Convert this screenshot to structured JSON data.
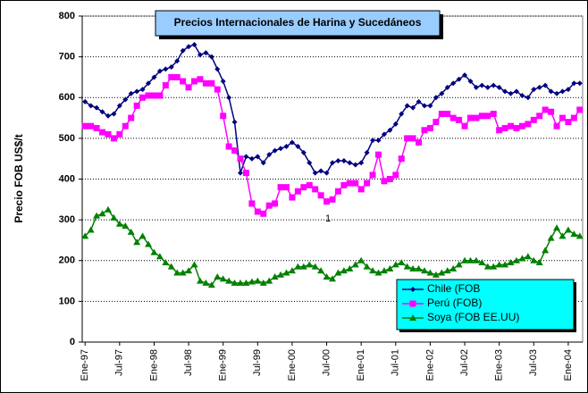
{
  "chart_data": {
    "type": "line",
    "title": "Precios Internacionales de Harina y Sucedáneos",
    "y_label": "Precio FOB US$/t",
    "annotation": "1",
    "categories": [
      "Ene-97",
      null,
      null,
      null,
      null,
      null,
      "Jul-97",
      null,
      null,
      null,
      null,
      null,
      "Ene-98",
      null,
      null,
      null,
      null,
      null,
      "Jul-98",
      null,
      null,
      null,
      null,
      null,
      "Ene-99",
      null,
      null,
      null,
      null,
      null,
      "Jul-99",
      null,
      null,
      null,
      null,
      null,
      "Ene-00",
      null,
      null,
      null,
      null,
      null,
      "Jul-00",
      null,
      null,
      null,
      null,
      null,
      "Ene-01",
      null,
      null,
      null,
      null,
      null,
      "Jul-01",
      null,
      null,
      null,
      null,
      null,
      "Ene-02",
      null,
      null,
      null,
      null,
      null,
      "Jul-02",
      null,
      null,
      null,
      null,
      null,
      "Ene-03",
      null,
      null,
      null,
      null,
      null,
      "Jul-03",
      null,
      null,
      null,
      null,
      null,
      "Ene-04",
      null,
      null
    ],
    "series": [
      {
        "name": "Chile (FOB",
        "color": "#000080",
        "marker": "diamond",
        "values": [
          590,
          580,
          575,
          565,
          555,
          560,
          580,
          595,
          610,
          615,
          620,
          635,
          650,
          665,
          670,
          675,
          690,
          715,
          725,
          730,
          705,
          710,
          700,
          670,
          640,
          600,
          540,
          415,
          455,
          450,
          455,
          440,
          460,
          470,
          475,
          480,
          490,
          480,
          465,
          440,
          415,
          420,
          415,
          440,
          445,
          445,
          440,
          435,
          440,
          465,
          495,
          495,
          510,
          520,
          535,
          560,
          580,
          575,
          590,
          580,
          580,
          600,
          610,
          625,
          635,
          645,
          655,
          640,
          625,
          630,
          625,
          630,
          625,
          615,
          610,
          615,
          605,
          600,
          620,
          625,
          630,
          615,
          610,
          615,
          620,
          635,
          635
        ]
      },
      {
        "name": "Perú (FOB)",
        "color": "#ff00ff",
        "marker": "square",
        "values": [
          530,
          530,
          525,
          515,
          510,
          500,
          510,
          530,
          550,
          580,
          600,
          605,
          605,
          605,
          630,
          650,
          650,
          640,
          625,
          640,
          645,
          635,
          635,
          620,
          555,
          480,
          470,
          450,
          415,
          340,
          320,
          315,
          335,
          340,
          380,
          380,
          355,
          370,
          380,
          385,
          375,
          360,
          345,
          350,
          370,
          385,
          390,
          390,
          375,
          390,
          410,
          460,
          395,
          400,
          410,
          450,
          500,
          500,
          490,
          520,
          525,
          540,
          560,
          560,
          550,
          545,
          530,
          550,
          550,
          555,
          555,
          560,
          520,
          525,
          530,
          525,
          530,
          535,
          545,
          555,
          570,
          565,
          530,
          550,
          540,
          550,
          570
        ]
      },
      {
        "name": "Soya (FOB EE.UU)",
        "color": "#008000",
        "marker": "triangle",
        "values": [
          260,
          275,
          310,
          315,
          325,
          305,
          290,
          285,
          270,
          245,
          260,
          240,
          220,
          210,
          195,
          185,
          170,
          170,
          175,
          190,
          150,
          145,
          140,
          160,
          155,
          150,
          145,
          145,
          145,
          148,
          150,
          145,
          150,
          160,
          165,
          170,
          175,
          185,
          185,
          190,
          185,
          175,
          160,
          155,
          170,
          175,
          180,
          190,
          200,
          185,
          175,
          170,
          175,
          180,
          190,
          195,
          185,
          180,
          180,
          175,
          170,
          165,
          170,
          175,
          180,
          190,
          200,
          200,
          200,
          195,
          185,
          185,
          190,
          190,
          195,
          200,
          205,
          210,
          200,
          195,
          225,
          255,
          280,
          260,
          275,
          265,
          260
        ]
      }
    ],
    "ylim": [
      0,
      800
    ],
    "yticks": [
      0,
      100,
      200,
      300,
      400,
      500,
      600,
      700,
      800
    ],
    "grid": true,
    "legend": "lower right"
  }
}
